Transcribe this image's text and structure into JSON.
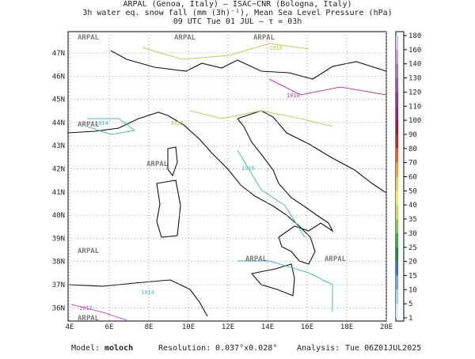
{
  "header": {
    "lines": [
      "ARPAL (Genoa, Italy)  —  ISAC−CNR (Bologna, Italy)",
      "3h water eq. snow fall (mm (3h)⁻¹), Mean Sea Level Pressure (hPa)",
      "09 UTC Tue 01 JUL  —  τ = 03h"
    ]
  },
  "map": {
    "lon_ticks": [
      "4E",
      "6E",
      "8E",
      "10E",
      "12E",
      "14E",
      "16E",
      "18E",
      "20E"
    ],
    "lat_ticks": [
      "47N",
      "46N",
      "45N",
      "44N",
      "43N",
      "42N",
      "41N",
      "40N",
      "39N",
      "38N",
      "37N",
      "36N"
    ],
    "watermark": "ARPAL",
    "isobar_labels": [
      {
        "text": "1018",
        "color": "#c8c850"
      },
      {
        "text": "1018",
        "color": "#b040a0"
      },
      {
        "text": "1016",
        "color": "#c8c850"
      },
      {
        "text": "1016",
        "color": "#40c0b0"
      },
      {
        "text": "1014",
        "color": "#40c0b0"
      },
      {
        "text": "1014",
        "color": "#40c0b0"
      },
      {
        "text": "1012",
        "color": "#c060c0"
      }
    ]
  },
  "colorbar": {
    "labels": [
      "1",
      "5",
      "10",
      "15",
      "20",
      "25",
      "30",
      "35",
      "40",
      "50",
      "60",
      "70",
      "80",
      "90",
      "100",
      "110",
      "120",
      "130",
      "140",
      "160",
      "180"
    ],
    "colors": [
      "#d8ecf8",
      "#a8d0f0",
      "#6fa8e8",
      "#3a6fd8",
      "#1a8a3a",
      "#33b040",
      "#80cc40",
      "#c8e050",
      "#f0f050",
      "#f0d040",
      "#f0a030",
      "#e86020",
      "#d02020",
      "#b01030",
      "#a02080",
      "#9030a0",
      "#a050b8",
      "#b070c8",
      "#c898d8",
      "#e0c0e8"
    ]
  },
  "footer": {
    "model_label": "Model:",
    "model": "moloch",
    "resolution_label": "Resolution:",
    "resolution": "0.037°x0.028°",
    "analysis_label": "Analysis:",
    "analysis": "Tue 06Z01JUL2025"
  }
}
